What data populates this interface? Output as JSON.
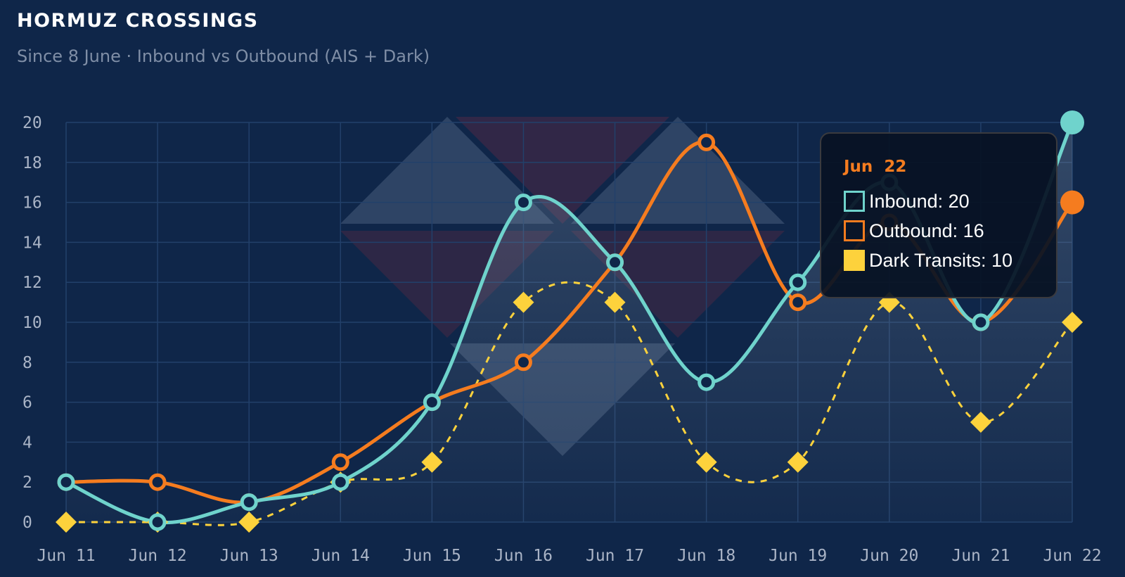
{
  "header": {
    "title": "HORMUZ CROSSINGS",
    "subtitle": "Since 8 June · Inbound vs Outbound (AIS + Dark)"
  },
  "colors": {
    "background": "#0f2649",
    "inbound": "#6fd3cc",
    "outbound": "#f57c1f",
    "dark": "#fdd23c",
    "grid": "#22406a"
  },
  "chart_data": {
    "type": "line",
    "title": "HORMUZ CROSSINGS",
    "subtitle": "Since 8 June · Inbound vs Outbound (AIS + Dark)",
    "categories": [
      "Jun 11",
      "Jun 12",
      "Jun 13",
      "Jun 14",
      "Jun 15",
      "Jun 16",
      "Jun 17",
      "Jun 18",
      "Jun 19",
      "Jun 20",
      "Jun 21",
      "Jun 22"
    ],
    "ylim": [
      0,
      20
    ],
    "yticks": [
      0,
      2,
      4,
      6,
      8,
      10,
      12,
      14,
      16,
      18,
      20
    ],
    "grid": true,
    "series": [
      {
        "name": "Inbound",
        "values": [
          2,
          0,
          1,
          2,
          6,
          16,
          13,
          7,
          12,
          17,
          10,
          20
        ],
        "style": "solid-smooth",
        "marker": "circle"
      },
      {
        "name": "Outbound",
        "values": [
          2,
          2,
          1,
          3,
          6,
          8,
          13,
          19,
          11,
          15,
          10,
          16
        ],
        "style": "solid-smooth",
        "marker": "circle"
      },
      {
        "name": "Dark Transits",
        "values": [
          0,
          0,
          0,
          2,
          3,
          11,
          11,
          3,
          3,
          11,
          5,
          10
        ],
        "style": "dashed-smooth",
        "marker": "diamond"
      }
    ]
  },
  "tooltip": {
    "title": "Jun  22",
    "rows": [
      {
        "text": "Inbound: 20"
      },
      {
        "text": "Outbound: 16"
      },
      {
        "text": "Dark Transits: 10"
      }
    ]
  }
}
